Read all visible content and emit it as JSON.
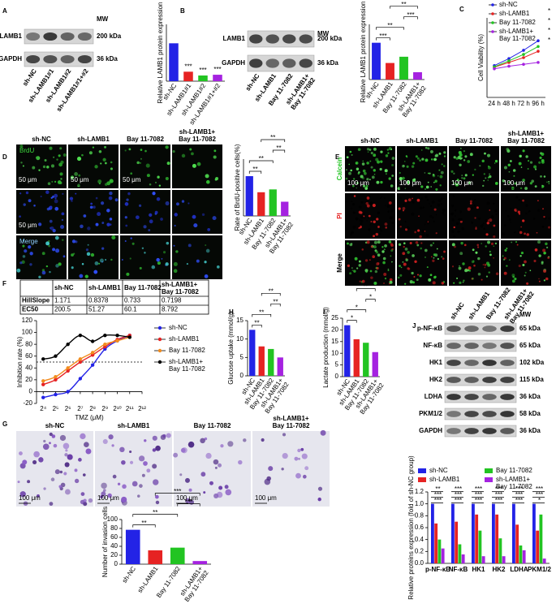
{
  "panels": {
    "A": {
      "label": "A",
      "blot": {
        "mw_header": "MW",
        "rows": [
          {
            "name": "LAMB1",
            "mw": "200 kDa"
          },
          {
            "name": "GAPDH",
            "mw": "36 kDa"
          }
        ],
        "lanes": [
          "sh-NC",
          "sh-LAMB1#1",
          "sh-LAMB1#2",
          "sh-LAMB1#1+#2"
        ]
      },
      "chart": {
        "type": "bar",
        "y_label": "Relative LAMB1 protein expression",
        "categories": [
          "sh-NC",
          "sh-LAMB1#1",
          "sh-LAMB1#2",
          "sh-LAMB1#1+#2"
        ],
        "values": [
          1.0,
          0.25,
          0.15,
          0.17
        ],
        "colors": [
          "#2323e6",
          "#e62323",
          "#22c422",
          "#a522e0"
        ],
        "ylim": [
          0,
          1.5
        ],
        "bar_labels": [
          null,
          "***",
          "***",
          "***"
        ]
      }
    },
    "B": {
      "label": "B",
      "blot": {
        "mw_header": "MW",
        "rows": [
          {
            "name": "LAMB1",
            "mw": "200 kDa"
          },
          {
            "name": "GAPDH",
            "mw": "36 kDa"
          }
        ],
        "lanes": [
          "sh-NC",
          "sh-LAMB1",
          "Bay 11-7082",
          "sh-LAMB1+ Bay 11-7082"
        ]
      },
      "chart": {
        "type": "bar",
        "y_label": "Relative LAMB1 protein expression",
        "categories": [
          "sh-NC",
          "sh-LAMB1",
          "Bay 11-7082",
          "sh-LAMB1+ Bay 11-7082"
        ],
        "values": [
          1.0,
          0.45,
          0.62,
          0.2
        ],
        "colors": [
          "#2323e6",
          "#e62323",
          "#22c422",
          "#a522e0"
        ],
        "ylim": [
          0,
          1.5
        ],
        "comparisons": [
          {
            "pair": [
              "sh-NC",
              "sh-LAMB1"
            ],
            "label": "***"
          },
          {
            "pair": [
              "sh-NC",
              "Bay 11-7082"
            ],
            "label": "**"
          },
          {
            "pair": [
              "Bay 11-7082",
              "sh-LAMB1+ Bay 11-7082"
            ],
            "label": "***"
          },
          {
            "pair": [
              "sh-LAMB1",
              "sh-LAMB1+ Bay 11-7082"
            ],
            "label": "**"
          }
        ]
      }
    },
    "C": {
      "label": "C",
      "chart": {
        "type": "line",
        "y_label": "Cell Viability (%)",
        "categories": [
          "24 h",
          "48 h",
          "72 h",
          "96 h"
        ],
        "ylim": [
          0,
          250
        ],
        "series": [
          {
            "name": "sh-NC",
            "color": "#2323e6",
            "values": [
              100,
              122,
              148,
              178
            ]
          },
          {
            "name": "sh-LAMB1",
            "color": "#e62323",
            "values": [
              95,
              110,
              125,
              145
            ]
          },
          {
            "name": "Bay 11-7082",
            "color": "#22c422",
            "values": [
              96,
              115,
              135,
              160
            ]
          },
          {
            "name": "sh-LAMB1+ Bay 11-7082",
            "color": "#a522e0",
            "values": [
              90,
              98,
              104,
              110
            ]
          }
        ],
        "annotations": [
          "*",
          "*",
          "*",
          "*"
        ]
      }
    },
    "D": {
      "label": "D",
      "images": {
        "columns": [
          "sh-NC",
          "sh-LAMB1",
          "Bay 11-7082",
          "sh-LAMB1+ Bay 11-7082"
        ],
        "rows": [
          {
            "name": "BrdU",
            "color": "#3ddc3d"
          },
          {
            "name": null
          },
          {
            "name": "Merge",
            "color": "#8fd0ff"
          }
        ],
        "scale_bar": "50 μm"
      },
      "chart": {
        "type": "bar",
        "y_label": "Rate of BrdU-positive cells(%)",
        "categories": [
          "sh-NC",
          "sh-LAMB1",
          "Bay 11-7082",
          "sh-LAMB1+ Bay 11-7082"
        ],
        "values": [
          42,
          25,
          28,
          15
        ],
        "colors": [
          "#2323e6",
          "#e62323",
          "#22c422",
          "#a522e0"
        ],
        "ylim": [
          0,
          60
        ],
        "comparisons": [
          {
            "pair": [
              "sh-NC",
              "sh-LAMB1"
            ],
            "label": "**"
          },
          {
            "pair": [
              "sh-NC",
              "Bay 11-7082"
            ],
            "label": "**"
          },
          {
            "pair": [
              "Bay 11-7082",
              "sh-LAMB1+ Bay 11-7082"
            ],
            "label": "**"
          },
          {
            "pair": [
              "sh-LAMB1",
              "sh-LAMB1+ Bay 11-7082"
            ],
            "label": "**"
          }
        ]
      }
    },
    "E": {
      "label": "E",
      "images": {
        "columns": [
          "sh-NC",
          "sh-LAMB1",
          "Bay 11-7082",
          "sh-LAMB1+ Bay 11-7082"
        ],
        "rows": [
          {
            "name": "Calcein",
            "color": "#22c422"
          },
          {
            "name": "PI",
            "color": "#e62323"
          },
          {
            "name": "Merge",
            "color": "#000000"
          }
        ],
        "scale_bar": "100 μm"
      }
    },
    "F": {
      "label": "F",
      "table": {
        "header": [
          "sh-NC",
          "sh-LAMB1",
          "Bay 11-7082",
          "sh-LAMB1+ Bay 11-7082"
        ],
        "rows": [
          {
            "name": "HillSlope",
            "values": [
              1.171,
              0.8378,
              0.733,
              0.7198
            ]
          },
          {
            "name": "EC50",
            "values": [
              200.5,
              51.27,
              60.1,
              8.792
            ]
          }
        ]
      },
      "curve": {
        "type": "line",
        "log_x": true,
        "y_label": "Inhibition rate (%)",
        "x_label": "TMZ (μM)",
        "x": [
          16,
          32,
          64,
          128,
          256,
          512,
          1024,
          2048
        ],
        "xlim": [
          11,
          4096
        ],
        "xticks": [
          {
            "value": 16,
            "label": "2⁴"
          },
          {
            "value": 32,
            "label": "2⁵"
          },
          {
            "value": 64,
            "label": "2⁶"
          },
          {
            "value": 128,
            "label": "2⁷"
          },
          {
            "value": 256,
            "label": "2⁸"
          },
          {
            "value": 512,
            "label": "2⁹"
          },
          {
            "value": 1024,
            "label": "2¹⁰"
          },
          {
            "value": 2048,
            "label": "2¹¹"
          },
          {
            "value": 4096,
            "label": "2¹²"
          }
        ],
        "ylim": [
          -20,
          120
        ],
        "yticks": [
          -20,
          0,
          20,
          40,
          60,
          80,
          100,
          120
        ],
        "reference_line": 50,
        "series": [
          {
            "name": "sh-NC",
            "color": "#2323e6",
            "values": [
              -10,
              -5,
              0,
              22,
              45,
              72,
              86,
              95
            ]
          },
          {
            "name": "sh-LAMB1",
            "color": "#e62323",
            "values": [
              12,
              20,
              35,
              50,
              62,
              76,
              88,
              95
            ]
          },
          {
            "name": "Bay 11-7082",
            "color": "#f28c1e",
            "values": [
              18,
              25,
              40,
              55,
              66,
              80,
              86,
              92
            ]
          },
          {
            "name": "sh-LAMB1+ Bay 11-7082",
            "color": "#000000",
            "values": [
              55,
              60,
              80,
              95,
              85,
              95,
              95,
              92
            ]
          }
        ]
      }
    },
    "G": {
      "label": "G",
      "images": {
        "columns": [
          "sh-NC",
          "sh-LAMB1",
          "Bay 11-7082",
          "sh-LAMB1+ Bay 11-7082"
        ],
        "rows": [
          {
            "name": null
          }
        ],
        "scale_bar": "100 μm"
      },
      "chart": {
        "type": "bar",
        "y_label": "Number of invasion cells",
        "categories": [
          "sh-NC",
          "sh-LAMB1",
          "Bay 11-7082",
          "sh-LAMB1+ Bay 11-7082"
        ],
        "values": [
          77,
          31,
          37,
          7
        ],
        "colors": [
          "#2323e6",
          "#e62323",
          "#22c422",
          "#a522e0"
        ],
        "ylim": [
          0,
          100
        ],
        "yticks": [
          0,
          20,
          40,
          60,
          80,
          100
        ],
        "comparisons": [
          {
            "pair": [
              "sh-NC",
              "sh-LAMB1"
            ],
            "label": "**"
          },
          {
            "pair": [
              "sh-NC",
              "Bay 11-7082"
            ],
            "label": "**"
          },
          {
            "pair": [
              "Bay 11-7082",
              "sh-LAMB1+ Bay 11-7082"
            ],
            "label": "***"
          },
          {
            "pair": [
              "sh-LAMB1",
              "sh-LAMB1+ Bay 11-7082"
            ],
            "label": "***"
          }
        ]
      }
    },
    "H": {
      "label": "H",
      "chart": {
        "type": "bar",
        "y_label": "Glucose uptake (mmol/g)",
        "categories": [
          "sh-NC",
          "sh-LAMB1",
          "Bay 11-7082",
          "sh-LAMB1+ Bay 11-7082"
        ],
        "values": [
          12.5,
          8,
          7.3,
          5
        ],
        "colors": [
          "#2323e6",
          "#e62323",
          "#22c422",
          "#a522e0"
        ],
        "ylim": [
          0,
          15
        ],
        "yticks": [
          0,
          5,
          10,
          15
        ],
        "comparisons": [
          {
            "pair": [
              "sh-NC",
              "sh-LAMB1"
            ],
            "label": "**"
          },
          {
            "pair": [
              "sh-NC",
              "Bay 11-7082"
            ],
            "label": "**"
          },
          {
            "pair": [
              "Bay 11-7082",
              "sh-LAMB1+ Bay 11-7082"
            ],
            "label": "**"
          },
          {
            "pair": [
              "sh-LAMB1",
              "sh-LAMB1+ Bay 11-7082"
            ],
            "label": "**"
          }
        ]
      }
    },
    "I": {
      "label": "I",
      "chart": {
        "type": "bar",
        "y_label": "Lactate production (mmol/g)",
        "categories": [
          "sh-NC",
          "sh-LAMB1",
          "Bay 11-7082",
          "sh-LAMB1+ Bay 11-7082"
        ],
        "values": [
          22,
          16,
          14.5,
          10.5
        ],
        "colors": [
          "#2323e6",
          "#e62323",
          "#22c422",
          "#a522e0"
        ],
        "ylim": [
          0,
          25
        ],
        "yticks": [
          0,
          5,
          10,
          15,
          20,
          25
        ],
        "comparisons": [
          {
            "pair": [
              "sh-NC",
              "sh-LAMB1"
            ],
            "label": "*"
          },
          {
            "pair": [
              "sh-NC",
              "Bay 11-7082"
            ],
            "label": "*"
          },
          {
            "pair": [
              "Bay 11-7082",
              "sh-LAMB1+ Bay 11-7082"
            ],
            "label": "*"
          },
          {
            "pair": [
              "sh-LAMB1",
              "sh-LAMB1+ Bay 11-7082"
            ],
            "label": "**"
          }
        ]
      }
    },
    "J": {
      "label": "J",
      "blot": {
        "mw_header": "MW",
        "rows": [
          {
            "name": "p-NF-κB",
            "mw": "65 kDa"
          },
          {
            "name": "NF-κB",
            "mw": "65 kDa"
          },
          {
            "name": "HK1",
            "mw": "102 kDa"
          },
          {
            "name": "HK2",
            "mw": "115 kDa"
          },
          {
            "name": "LDHA",
            "mw": "36 kDa"
          },
          {
            "name": "PKM1/2",
            "mw": "58 kDa"
          },
          {
            "name": "GAPDH",
            "mw": "36 kDa"
          }
        ],
        "lanes": [
          "sh-NC",
          "sh-LAMB1",
          "Bay 11-7082",
          "sh-LAMB1+ Bay 11-7082"
        ]
      },
      "chart": {
        "type": "grouped_bar",
        "y_label": "Relative proteins expression (fold of sh-NC group)",
        "categories": [
          "p-NF-κB",
          "NF-κB",
          "HK1",
          "HK2",
          "LDHA",
          "PKM1/2"
        ],
        "ylim": [
          0,
          1.2
        ],
        "yticks": [
          {
            "value": 0,
            "label": "0.0"
          },
          0.2,
          0.4,
          0.6,
          0.8,
          {
            "value": 1,
            "label": "1.0"
          },
          1.2
        ],
        "series": [
          {
            "name": "sh-NC",
            "color": "#2323e6",
            "values": [
              1,
              1,
              1,
              1,
              1,
              1
            ]
          },
          {
            "name": "sh-LAMB1",
            "color": "#e62323",
            "values": [
              0.67,
              0.7,
              0.82,
              0.82,
              0.65,
              0.55
            ]
          },
          {
            "name": "Bay 11-7082",
            "color": "#22c422",
            "values": [
              0.4,
              0.32,
              0.55,
              0.42,
              0.3,
              0.82
            ]
          },
          {
            "name": "sh-LAMB1+ Bay 11-7082",
            "color": "#a522e0",
            "values": [
              0.25,
              0.15,
              0.12,
              0.12,
              0.22,
              0.08
            ]
          }
        ],
        "comparisons": [
          [
            "***",
            "***",
            "**"
          ],
          [
            "***",
            "***",
            "***"
          ],
          [
            "***",
            "***",
            "***"
          ],
          [
            "***",
            "***",
            "***"
          ],
          [
            "***",
            "***",
            "***"
          ],
          [
            "*",
            "***",
            "***"
          ]
        ]
      }
    }
  }
}
